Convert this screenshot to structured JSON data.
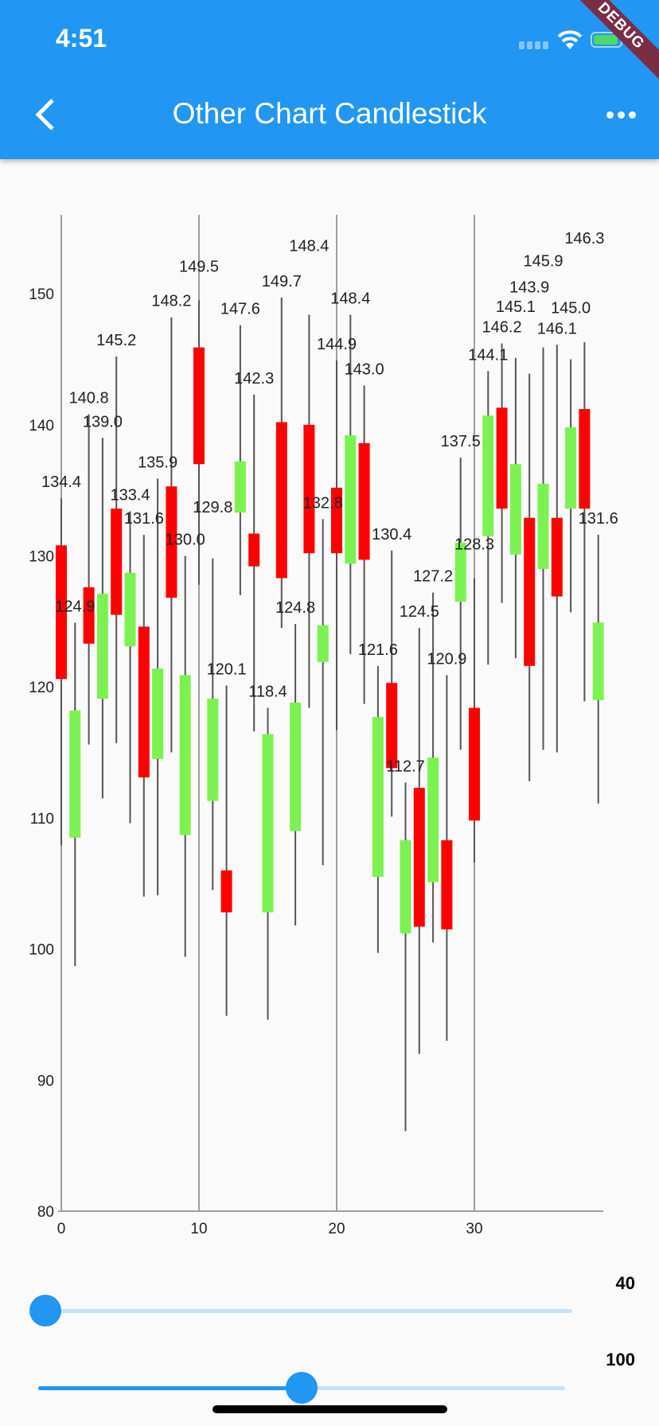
{
  "status_bar": {
    "time": "4:51",
    "icons": [
      "signal-icon",
      "wifi-icon",
      "battery-charging-icon"
    ]
  },
  "debug_banner": "DEBUG",
  "app_bar": {
    "title": "Other Chart Candlestick",
    "back_icon": "chevron-left-icon",
    "menu_icon": "more-horizontal-icon"
  },
  "colors": {
    "primary": "#2196f3",
    "increasing": "#7cf252",
    "decreasing": "#ff0000",
    "wick": "#555555"
  },
  "chart_data": {
    "type": "candlestick",
    "xlim": [
      0,
      39
    ],
    "ylim": [
      80,
      156
    ],
    "x_ticks": [
      "0",
      "10",
      "20",
      "30"
    ],
    "y_ticks": [
      "80",
      "90",
      "100",
      "110",
      "120",
      "130",
      "140",
      "150"
    ],
    "grid": "vertical lines every 10",
    "data_labels": "high value above each candle",
    "candles": [
      {
        "x": 0,
        "open": 130.8,
        "close": 120.6,
        "high": 134.4,
        "low": 107.9,
        "label": "134.4"
      },
      {
        "x": 1,
        "open": 108.5,
        "close": 118.2,
        "high": 124.9,
        "low": 98.7,
        "label": "124.9"
      },
      {
        "x": 2,
        "open": 127.6,
        "close": 123.3,
        "high": 140.8,
        "low": 115.6,
        "label": "140.8"
      },
      {
        "x": 3,
        "open": 119.1,
        "close": 127.1,
        "high": 139.0,
        "low": 111.5,
        "label": "139.0"
      },
      {
        "x": 4,
        "open": 133.6,
        "close": 125.5,
        "high": 145.2,
        "low": 115.7,
        "label": "145.2"
      },
      {
        "x": 5,
        "open": 123.1,
        "close": 128.7,
        "high": 133.4,
        "low": 109.6,
        "label": "133.4"
      },
      {
        "x": 6,
        "open": 124.6,
        "close": 113.1,
        "high": 131.6,
        "low": 104.0,
        "label": "131.6"
      },
      {
        "x": 7,
        "open": 114.5,
        "close": 121.4,
        "high": 135.9,
        "low": 104.1,
        "label": "135.9"
      },
      {
        "x": 8,
        "open": 135.3,
        "close": 126.8,
        "high": 148.2,
        "low": 115.0,
        "label": "148.2"
      },
      {
        "x": 9,
        "open": 108.7,
        "close": 120.9,
        "high": 130.0,
        "low": 99.4,
        "label": "130.0"
      },
      {
        "x": 10,
        "open": 145.9,
        "close": 137.0,
        "high": 149.5,
        "low": 127.8,
        "label": "149.5"
      },
      {
        "x": 11,
        "open": 111.3,
        "close": 119.1,
        "high": 129.8,
        "low": 104.5,
        "label": "129.8"
      },
      {
        "x": 12,
        "open": 106.0,
        "close": 102.8,
        "high": 120.1,
        "low": 94.9,
        "label": "120.1"
      },
      {
        "x": 13,
        "open": 133.3,
        "close": 137.2,
        "high": 147.6,
        "low": 127.0,
        "label": "147.6"
      },
      {
        "x": 14,
        "open": 131.7,
        "close": 129.2,
        "high": 142.3,
        "low": 116.6,
        "label": "142.3"
      },
      {
        "x": 15,
        "open": 102.8,
        "close": 116.4,
        "high": 118.4,
        "low": 94.6,
        "label": "118.4"
      },
      {
        "x": 16,
        "open": 140.2,
        "close": 128.3,
        "high": 149.7,
        "low": 124.5,
        "label": "149.7"
      },
      {
        "x": 17,
        "open": 109.0,
        "close": 118.8,
        "high": 124.8,
        "low": 101.8,
        "label": "124.8"
      },
      {
        "x": 18,
        "open": 140.0,
        "close": 130.2,
        "high": 148.4,
        "low": 118.4,
        "label": "148.4"
      },
      {
        "x": 19,
        "open": 121.9,
        "close": 124.7,
        "high": 132.8,
        "low": 106.4,
        "label": "132.8"
      },
      {
        "x": 20,
        "open": 135.2,
        "close": 130.2,
        "high": 144.9,
        "low": 116.7,
        "label": "144.9"
      },
      {
        "x": 21,
        "open": 129.4,
        "close": 139.2,
        "high": 148.4,
        "low": 122.5,
        "label": "148.4"
      },
      {
        "x": 22,
        "open": 138.6,
        "close": 129.7,
        "high": 143.0,
        "low": 118.7,
        "label": "143.0"
      },
      {
        "x": 23,
        "open": 105.5,
        "close": 117.7,
        "high": 121.6,
        "low": 99.7,
        "label": "121.6"
      },
      {
        "x": 24,
        "open": 120.3,
        "close": 113.8,
        "high": 130.4,
        "low": 110.1,
        "label": "130.4"
      },
      {
        "x": 25,
        "open": 101.2,
        "close": 108.3,
        "high": 112.7,
        "low": 86.1,
        "label": "112.7"
      },
      {
        "x": 26,
        "open": 112.3,
        "close": 101.7,
        "high": 124.5,
        "low": 92.0,
        "label": "124.5"
      },
      {
        "x": 27,
        "open": 105.1,
        "close": 114.6,
        "high": 127.2,
        "low": 100.5,
        "label": "127.2"
      },
      {
        "x": 28,
        "open": 108.3,
        "close": 101.5,
        "high": 120.9,
        "low": 93.0,
        "label": "120.9"
      },
      {
        "x": 29,
        "open": 126.5,
        "close": 131.0,
        "high": 137.5,
        "low": 115.2,
        "label": "137.5"
      },
      {
        "x": 30,
        "open": 118.4,
        "close": 109.8,
        "high": 128.3,
        "low": 106.6,
        "label": "128.3"
      },
      {
        "x": 31,
        "open": 131.5,
        "close": 140.7,
        "high": 144.1,
        "low": 121.7,
        "label": "144.1"
      },
      {
        "x": 32,
        "open": 141.3,
        "close": 133.6,
        "high": 146.2,
        "low": 126.4,
        "label": "146.2"
      },
      {
        "x": 33,
        "open": 130.1,
        "close": 137.0,
        "high": 145.1,
        "low": 122.2,
        "label": "145.1"
      },
      {
        "x": 34,
        "open": 132.9,
        "close": 121.6,
        "high": 143.9,
        "low": 112.8,
        "label": "143.9"
      },
      {
        "x": 35,
        "open": 129.0,
        "close": 135.5,
        "high": 145.9,
        "low": 115.2,
        "label": "145.9"
      },
      {
        "x": 36,
        "open": 132.9,
        "close": 126.9,
        "high": 146.1,
        "low": 115.0,
        "label": "146.1"
      },
      {
        "x": 37,
        "open": 133.6,
        "close": 139.8,
        "high": 145.0,
        "low": 125.7,
        "label": "145.0"
      },
      {
        "x": 38,
        "open": 141.2,
        "close": 133.6,
        "high": 146.3,
        "low": 118.9,
        "label": "146.3"
      },
      {
        "x": 39,
        "open": 119.0,
        "close": 124.9,
        "high": 131.6,
        "low": 111.1,
        "label": "131.6"
      }
    ]
  },
  "sliders": [
    {
      "value_label": "40",
      "position_fraction": 0.0
    },
    {
      "value_label": "100",
      "position_fraction": 0.5
    }
  ]
}
